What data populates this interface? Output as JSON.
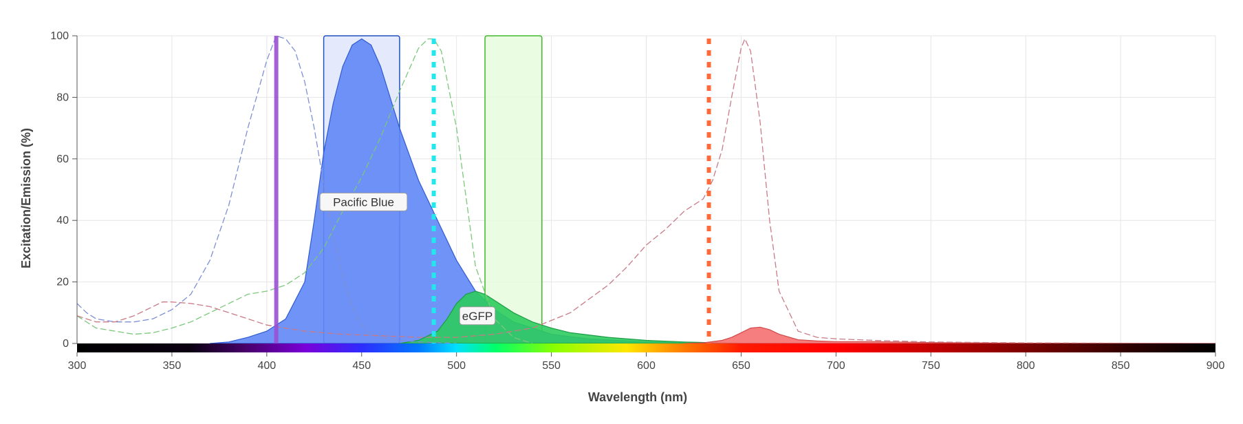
{
  "chart_data": {
    "type": "line",
    "title": "",
    "xlabel": "Wavelength (nm)",
    "ylabel": "Excitation/Emission (%)",
    "xlim": [
      300,
      900
    ],
    "ylim": [
      0,
      100
    ],
    "x_ticks": [
      300,
      350,
      400,
      450,
      500,
      550,
      600,
      650,
      700,
      750,
      800,
      850,
      900
    ],
    "y_ticks": [
      0,
      20,
      40,
      60,
      80,
      100
    ],
    "grid": true,
    "laser_lines": [
      {
        "wavelength": 405,
        "color": "#9b4fd4",
        "style": "solid"
      },
      {
        "wavelength": 488,
        "color": "#22e8ee",
        "style": "dotted"
      },
      {
        "wavelength": 633,
        "color": "#ff6a3a",
        "style": "dotted"
      }
    ],
    "filters": [
      {
        "range": [
          430,
          470
        ],
        "fill": "#dfe6fb",
        "stroke": "#1f4fc4"
      },
      {
        "range": [
          515,
          545
        ],
        "fill": "#e6fbdc",
        "stroke": "#3fb82a"
      }
    ],
    "series": [
      {
        "name": "Pacific Blue",
        "kind": "excitation",
        "color": "#7d8fd6",
        "x": [
          300,
          305,
          310,
          320,
          330,
          340,
          350,
          360,
          370,
          380,
          390,
          400,
          405,
          410,
          415,
          420,
          425,
          430,
          435,
          440,
          445,
          450,
          455,
          460,
          470,
          480,
          500
        ],
        "y": [
          13,
          10,
          8,
          7,
          7,
          8,
          11,
          16,
          27,
          45,
          70,
          92,
          100,
          99,
          95,
          85,
          70,
          52,
          35,
          22,
          12,
          6,
          3,
          2,
          1,
          0.5,
          0
        ]
      },
      {
        "name": "Pacific Blue",
        "kind": "emission",
        "color": "#2f5ad0",
        "fill": "#5f87f6",
        "x": [
          370,
          380,
          390,
          400,
          410,
          420,
          425,
          430,
          435,
          440,
          445,
          450,
          455,
          460,
          465,
          470,
          480,
          490,
          500,
          510,
          520,
          530,
          540,
          550,
          570,
          600,
          650
        ],
        "y": [
          0,
          0.5,
          2,
          4,
          8,
          20,
          40,
          62,
          78,
          90,
          97,
          99,
          97,
          90,
          80,
          70,
          53,
          40,
          27,
          17,
          11,
          7,
          5,
          3,
          1.5,
          0.5,
          0
        ]
      },
      {
        "name": "eGFP",
        "kind": "excitation",
        "color": "#7ac87a",
        "x": [
          300,
          310,
          320,
          330,
          340,
          350,
          360,
          370,
          380,
          390,
          400,
          410,
          420,
          430,
          440,
          450,
          460,
          470,
          480,
          485,
          488,
          492,
          500,
          510,
          520,
          530,
          540
        ],
        "y": [
          9,
          5,
          4,
          3,
          3.5,
          5,
          7,
          10,
          13,
          16,
          17,
          19,
          23,
          31,
          43,
          54,
          67,
          82,
          96,
          99,
          99,
          95,
          70,
          25,
          8,
          2,
          0
        ]
      },
      {
        "name": "eGFP",
        "kind": "emission",
        "color": "#1c9c46",
        "fill": "#2ecc5e",
        "x": [
          470,
          480,
          490,
          495,
          500,
          505,
          510,
          515,
          520,
          530,
          540,
          550,
          560,
          580,
          600,
          620,
          650
        ],
        "y": [
          0,
          1,
          4,
          8,
          13,
          16,
          17,
          16,
          14,
          10,
          7,
          5,
          3.5,
          2,
          1,
          0.5,
          0
        ]
      },
      {
        "name": "",
        "kind": "excitation",
        "color": "#c97a86",
        "x": [
          300,
          310,
          320,
          330,
          340,
          345,
          350,
          360,
          370,
          380,
          390,
          400,
          420,
          440,
          460,
          480,
          500,
          520,
          540,
          560,
          580,
          590,
          600,
          610,
          620,
          630,
          635,
          640,
          645,
          650,
          652,
          655,
          660,
          665,
          670,
          680,
          690,
          700,
          720,
          750,
          800,
          900
        ],
        "y": [
          9,
          7,
          7,
          9,
          12,
          13.5,
          13.5,
          13,
          12,
          10,
          8,
          6,
          4,
          3,
          2.5,
          2,
          2,
          3,
          5,
          10,
          19,
          25,
          32,
          37,
          43,
          47,
          53,
          63,
          80,
          96,
          99,
          95,
          72,
          40,
          17,
          4,
          2,
          1.5,
          1,
          0.5,
          0.2,
          0
        ]
      },
      {
        "name": "",
        "kind": "emission",
        "color": "#d04848",
        "fill": "#f57070",
        "x": [
          620,
          630,
          640,
          645,
          650,
          655,
          660,
          665,
          670,
          680,
          690,
          700,
          720,
          750,
          800,
          900
        ],
        "y": [
          0,
          0.2,
          1,
          2,
          3.5,
          5,
          5.3,
          4.5,
          3,
          1.2,
          0.8,
          0.6,
          0.6,
          0.3,
          0.1,
          0
        ]
      }
    ],
    "annotations": [
      {
        "text": "Pacific Blue",
        "x": 451,
        "y": 46
      },
      {
        "text": "eGFP",
        "x": 511,
        "y": 9
      }
    ]
  }
}
